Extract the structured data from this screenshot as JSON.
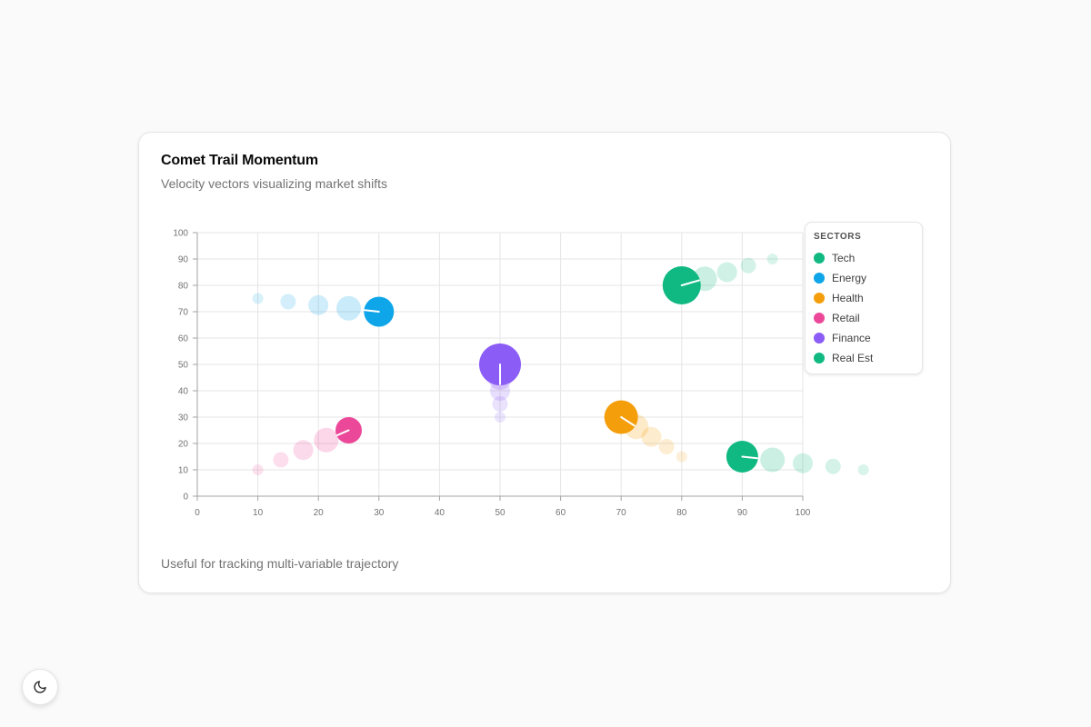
{
  "card": {
    "title": "Comet Trail Momentum",
    "subtitle": "Velocity vectors visualizing market shifts",
    "footer": "Useful for tracking multi-variable trajectory"
  },
  "legend": {
    "title": "Sectors"
  },
  "theme_toggle": {
    "icon": "moon-icon"
  },
  "chart_data": {
    "type": "scatter",
    "title": "Comet Trail Momentum",
    "subtitle": "Velocity vectors visualizing market shifts",
    "xlim": [
      0,
      100
    ],
    "ylim": [
      0,
      100
    ],
    "xticks": [
      0,
      10,
      20,
      30,
      40,
      50,
      60,
      70,
      80,
      90,
      100
    ],
    "yticks": [
      0,
      10,
      20,
      30,
      40,
      50,
      60,
      70,
      80,
      90,
      100
    ],
    "grid": true,
    "legend_position": "top-right",
    "series": [
      {
        "name": "Tech",
        "color": "#10b981",
        "head": {
          "x": 80,
          "y": 80
        },
        "trail": [
          {
            "x": 95,
            "y": 90
          },
          {
            "x": 91,
            "y": 87.5
          },
          {
            "x": 87.5,
            "y": 85
          },
          {
            "x": 83.8,
            "y": 82.5
          }
        ]
      },
      {
        "name": "Energy",
        "color": "#0ea5e9",
        "head": {
          "x": 30,
          "y": 70
        },
        "trail": [
          {
            "x": 10,
            "y": 75
          },
          {
            "x": 15,
            "y": 73.8
          },
          {
            "x": 20,
            "y": 72.5
          },
          {
            "x": 25,
            "y": 71.3
          }
        ]
      },
      {
        "name": "Health",
        "color": "#f59e0b",
        "head": {
          "x": 70,
          "y": 30
        },
        "trail": [
          {
            "x": 80,
            "y": 15
          },
          {
            "x": 77.5,
            "y": 18.8
          },
          {
            "x": 75,
            "y": 22.5
          },
          {
            "x": 72.5,
            "y": 26.3
          }
        ]
      },
      {
        "name": "Retail",
        "color": "#ec4899",
        "head": {
          "x": 25,
          "y": 25
        },
        "trail": [
          {
            "x": 10,
            "y": 10
          },
          {
            "x": 13.8,
            "y": 13.8
          },
          {
            "x": 17.5,
            "y": 17.5
          },
          {
            "x": 21.3,
            "y": 21.3
          }
        ]
      },
      {
        "name": "Finance",
        "color": "#8b5cf6",
        "head": {
          "x": 50,
          "y": 50
        },
        "trail": [
          {
            "x": 50,
            "y": 30
          },
          {
            "x": 50,
            "y": 35
          },
          {
            "x": 50,
            "y": 40
          },
          {
            "x": 50,
            "y": 45
          }
        ]
      },
      {
        "name": "Real Est",
        "color": "#10b981",
        "head": {
          "x": 90,
          "y": 15
        },
        "trail": [
          {
            "x": 110,
            "y": 10
          },
          {
            "x": 105,
            "y": 11.3
          },
          {
            "x": 100,
            "y": 12.5
          },
          {
            "x": 95,
            "y": 13.8
          }
        ]
      }
    ]
  }
}
